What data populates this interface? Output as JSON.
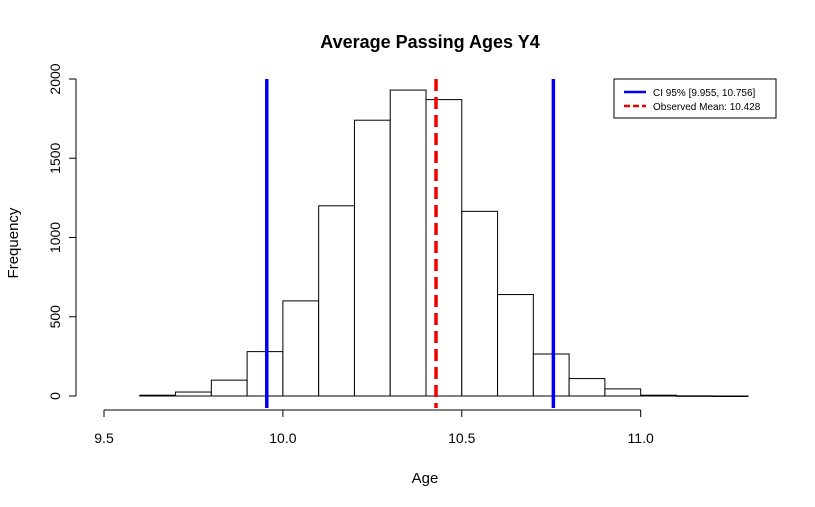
{
  "chart_data": {
    "type": "histogram",
    "title": "Average Passing Ages Y4",
    "xlabel": "Age",
    "ylabel": "Frequency",
    "xlim": [
      9.5,
      11.3
    ],
    "ylim": [
      0,
      2000
    ],
    "x_ticks": [
      {
        "value": 9.5,
        "label": "9.5"
      },
      {
        "value": 10.0,
        "label": "10.0"
      },
      {
        "value": 10.5,
        "label": "10.5"
      },
      {
        "value": 11.0,
        "label": "11.0"
      }
    ],
    "y_ticks": [
      {
        "value": 0,
        "label": "0"
      },
      {
        "value": 500,
        "label": "500"
      },
      {
        "value": 1000,
        "label": "1000"
      },
      {
        "value": 1500,
        "label": "1500"
      },
      {
        "value": 2000,
        "label": "2000"
      }
    ],
    "bins": [
      {
        "start": 9.6,
        "end": 9.7,
        "count": 5
      },
      {
        "start": 9.7,
        "end": 9.8,
        "count": 25
      },
      {
        "start": 9.8,
        "end": 9.9,
        "count": 100
      },
      {
        "start": 9.9,
        "end": 10.0,
        "count": 280
      },
      {
        "start": 10.0,
        "end": 10.1,
        "count": 600
      },
      {
        "start": 10.1,
        "end": 10.2,
        "count": 1200
      },
      {
        "start": 10.2,
        "end": 10.3,
        "count": 1740
      },
      {
        "start": 10.3,
        "end": 10.4,
        "count": 1930
      },
      {
        "start": 10.4,
        "end": 10.5,
        "count": 1870
      },
      {
        "start": 10.5,
        "end": 10.6,
        "count": 1165
      },
      {
        "start": 10.6,
        "end": 10.7,
        "count": 640
      },
      {
        "start": 10.7,
        "end": 10.8,
        "count": 265
      },
      {
        "start": 10.8,
        "end": 10.9,
        "count": 110
      },
      {
        "start": 10.9,
        "end": 11.0,
        "count": 45
      },
      {
        "start": 11.0,
        "end": 11.1,
        "count": 5
      },
      {
        "start": 11.1,
        "end": 11.2,
        "count": 1
      },
      {
        "start": 11.2,
        "end": 11.3,
        "count": 0
      }
    ],
    "reference_lines": [
      {
        "name": "CI 95% lower",
        "x": 9.955,
        "color": "#0000ee",
        "style": "solid"
      },
      {
        "name": "CI 95% upper",
        "x": 10.756,
        "color": "#0000ee",
        "style": "solid"
      },
      {
        "name": "Observed Mean",
        "x": 10.428,
        "color": "#ee0000",
        "style": "dashed"
      }
    ],
    "legend": {
      "position": "top-right",
      "entries": [
        {
          "label": "CI 95% [9.955, 10.756]",
          "color": "#0000ee",
          "style": "solid"
        },
        {
          "label": "Observed Mean: 10.428",
          "color": "#ee0000",
          "style": "dashed"
        }
      ]
    },
    "grid": false
  }
}
